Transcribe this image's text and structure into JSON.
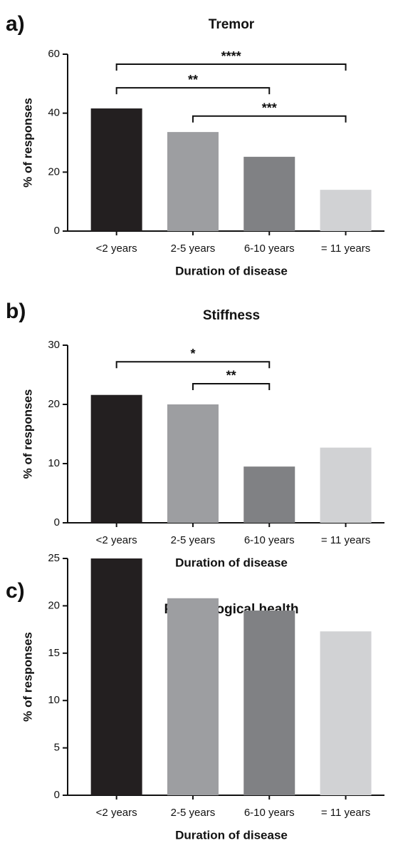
{
  "chart_data": [
    {
      "type": "bar",
      "panel": "a)",
      "title": "Tremor",
      "xlabel": "Duration of disease",
      "ylabel": "% of responses",
      "categories": [
        "<2 years",
        "2-5 years",
        "6-10 years",
        "= 11 years"
      ],
      "values": [
        41.6,
        33.6,
        25.2,
        14.0
      ],
      "colors": [
        "#231f20",
        "#9d9ea1",
        "#808184",
        "#d1d2d4"
      ],
      "ylim": [
        0,
        60
      ],
      "yticks": [
        0,
        20,
        40,
        60
      ],
      "annotations": [
        {
          "label": "****",
          "from": "<2 years",
          "to": "= 11 years",
          "y": 56.6
        },
        {
          "label": "**",
          "from": "<2 years",
          "to": "6-10 years",
          "y": 48.6
        },
        {
          "label": "***",
          "from": "2-5 years",
          "to": "= 11 years",
          "y": 39
        }
      ]
    },
    {
      "type": "bar",
      "panel": "b)",
      "title": "Stiffness",
      "xlabel": "Duration of disease",
      "ylabel": "% of responses",
      "categories": [
        "<2 years",
        "2-5 years",
        "6-10 years",
        "= 11 years"
      ],
      "values": [
        21.6,
        20.0,
        9.5,
        12.7
      ],
      "colors": [
        "#231f20",
        "#9d9ea1",
        "#808184",
        "#d1d2d4"
      ],
      "ylim": [
        0,
        30
      ],
      "yticks": [
        0,
        10,
        20,
        30
      ],
      "annotations": [
        {
          "label": "*",
          "from": "<2 years",
          "to": "6-10 years",
          "y": 27.2
        },
        {
          "label": "**",
          "from": "2-5 years",
          "to": "6-10 years",
          "y": 23.5
        }
      ]
    },
    {
      "type": "bar",
      "panel": "c)",
      "title": "Psychological health",
      "xlabel": "Duration of disease",
      "ylabel": "% of responses",
      "categories": [
        "<2 years",
        "2-5 years",
        "6-10 years",
        "= 11 years"
      ],
      "values": [
        25,
        20.8,
        19.5,
        17.3
      ],
      "colors": [
        "#231f20",
        "#9d9ea1",
        "#808184",
        "#d1d2d4"
      ],
      "ylim": [
        0,
        25
      ],
      "yticks": [
        0,
        5,
        10,
        15,
        20,
        25
      ]
    }
  ]
}
